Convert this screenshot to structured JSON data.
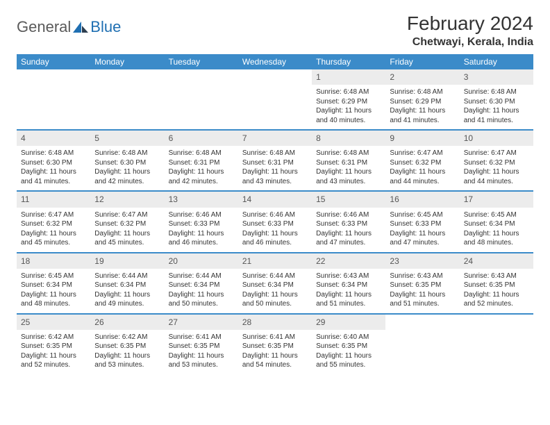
{
  "brand": {
    "text1": "General",
    "text2": "Blue"
  },
  "title": "February 2024",
  "location": "Chetwayi, Kerala, India",
  "colors": {
    "header_bg": "#3b8bc9",
    "header_text": "#ffffff",
    "border": "#3b8bc9",
    "daynum_bg": "#ececec",
    "daynum_text": "#555555",
    "body_text": "#333333",
    "page_bg": "#ffffff",
    "logo_gray": "#5a5a5a",
    "logo_blue": "#1f6fb2"
  },
  "typography": {
    "title_fontsize": 28,
    "location_fontsize": 16,
    "header_fontsize": 12,
    "daynum_fontsize": 12,
    "body_fontsize": 10
  },
  "calendar": {
    "type": "table",
    "columns": [
      "Sunday",
      "Monday",
      "Tuesday",
      "Wednesday",
      "Thursday",
      "Friday",
      "Saturday"
    ],
    "weeks": [
      [
        null,
        null,
        null,
        null,
        {
          "n": "1",
          "sunrise": "Sunrise: 6:48 AM",
          "sunset": "Sunset: 6:29 PM",
          "daylight": "Daylight: 11 hours and 40 minutes."
        },
        {
          "n": "2",
          "sunrise": "Sunrise: 6:48 AM",
          "sunset": "Sunset: 6:29 PM",
          "daylight": "Daylight: 11 hours and 41 minutes."
        },
        {
          "n": "3",
          "sunrise": "Sunrise: 6:48 AM",
          "sunset": "Sunset: 6:30 PM",
          "daylight": "Daylight: 11 hours and 41 minutes."
        }
      ],
      [
        {
          "n": "4",
          "sunrise": "Sunrise: 6:48 AM",
          "sunset": "Sunset: 6:30 PM",
          "daylight": "Daylight: 11 hours and 41 minutes."
        },
        {
          "n": "5",
          "sunrise": "Sunrise: 6:48 AM",
          "sunset": "Sunset: 6:30 PM",
          "daylight": "Daylight: 11 hours and 42 minutes."
        },
        {
          "n": "6",
          "sunrise": "Sunrise: 6:48 AM",
          "sunset": "Sunset: 6:31 PM",
          "daylight": "Daylight: 11 hours and 42 minutes."
        },
        {
          "n": "7",
          "sunrise": "Sunrise: 6:48 AM",
          "sunset": "Sunset: 6:31 PM",
          "daylight": "Daylight: 11 hours and 43 minutes."
        },
        {
          "n": "8",
          "sunrise": "Sunrise: 6:48 AM",
          "sunset": "Sunset: 6:31 PM",
          "daylight": "Daylight: 11 hours and 43 minutes."
        },
        {
          "n": "9",
          "sunrise": "Sunrise: 6:47 AM",
          "sunset": "Sunset: 6:32 PM",
          "daylight": "Daylight: 11 hours and 44 minutes."
        },
        {
          "n": "10",
          "sunrise": "Sunrise: 6:47 AM",
          "sunset": "Sunset: 6:32 PM",
          "daylight": "Daylight: 11 hours and 44 minutes."
        }
      ],
      [
        {
          "n": "11",
          "sunrise": "Sunrise: 6:47 AM",
          "sunset": "Sunset: 6:32 PM",
          "daylight": "Daylight: 11 hours and 45 minutes."
        },
        {
          "n": "12",
          "sunrise": "Sunrise: 6:47 AM",
          "sunset": "Sunset: 6:32 PM",
          "daylight": "Daylight: 11 hours and 45 minutes."
        },
        {
          "n": "13",
          "sunrise": "Sunrise: 6:46 AM",
          "sunset": "Sunset: 6:33 PM",
          "daylight": "Daylight: 11 hours and 46 minutes."
        },
        {
          "n": "14",
          "sunrise": "Sunrise: 6:46 AM",
          "sunset": "Sunset: 6:33 PM",
          "daylight": "Daylight: 11 hours and 46 minutes."
        },
        {
          "n": "15",
          "sunrise": "Sunrise: 6:46 AM",
          "sunset": "Sunset: 6:33 PM",
          "daylight": "Daylight: 11 hours and 47 minutes."
        },
        {
          "n": "16",
          "sunrise": "Sunrise: 6:45 AM",
          "sunset": "Sunset: 6:33 PM",
          "daylight": "Daylight: 11 hours and 47 minutes."
        },
        {
          "n": "17",
          "sunrise": "Sunrise: 6:45 AM",
          "sunset": "Sunset: 6:34 PM",
          "daylight": "Daylight: 11 hours and 48 minutes."
        }
      ],
      [
        {
          "n": "18",
          "sunrise": "Sunrise: 6:45 AM",
          "sunset": "Sunset: 6:34 PM",
          "daylight": "Daylight: 11 hours and 48 minutes."
        },
        {
          "n": "19",
          "sunrise": "Sunrise: 6:44 AM",
          "sunset": "Sunset: 6:34 PM",
          "daylight": "Daylight: 11 hours and 49 minutes."
        },
        {
          "n": "20",
          "sunrise": "Sunrise: 6:44 AM",
          "sunset": "Sunset: 6:34 PM",
          "daylight": "Daylight: 11 hours and 50 minutes."
        },
        {
          "n": "21",
          "sunrise": "Sunrise: 6:44 AM",
          "sunset": "Sunset: 6:34 PM",
          "daylight": "Daylight: 11 hours and 50 minutes."
        },
        {
          "n": "22",
          "sunrise": "Sunrise: 6:43 AM",
          "sunset": "Sunset: 6:34 PM",
          "daylight": "Daylight: 11 hours and 51 minutes."
        },
        {
          "n": "23",
          "sunrise": "Sunrise: 6:43 AM",
          "sunset": "Sunset: 6:35 PM",
          "daylight": "Daylight: 11 hours and 51 minutes."
        },
        {
          "n": "24",
          "sunrise": "Sunrise: 6:43 AM",
          "sunset": "Sunset: 6:35 PM",
          "daylight": "Daylight: 11 hours and 52 minutes."
        }
      ],
      [
        {
          "n": "25",
          "sunrise": "Sunrise: 6:42 AM",
          "sunset": "Sunset: 6:35 PM",
          "daylight": "Daylight: 11 hours and 52 minutes."
        },
        {
          "n": "26",
          "sunrise": "Sunrise: 6:42 AM",
          "sunset": "Sunset: 6:35 PM",
          "daylight": "Daylight: 11 hours and 53 minutes."
        },
        {
          "n": "27",
          "sunrise": "Sunrise: 6:41 AM",
          "sunset": "Sunset: 6:35 PM",
          "daylight": "Daylight: 11 hours and 53 minutes."
        },
        {
          "n": "28",
          "sunrise": "Sunrise: 6:41 AM",
          "sunset": "Sunset: 6:35 PM",
          "daylight": "Daylight: 11 hours and 54 minutes."
        },
        {
          "n": "29",
          "sunrise": "Sunrise: 6:40 AM",
          "sunset": "Sunset: 6:35 PM",
          "daylight": "Daylight: 11 hours and 55 minutes."
        },
        null,
        null
      ]
    ]
  }
}
